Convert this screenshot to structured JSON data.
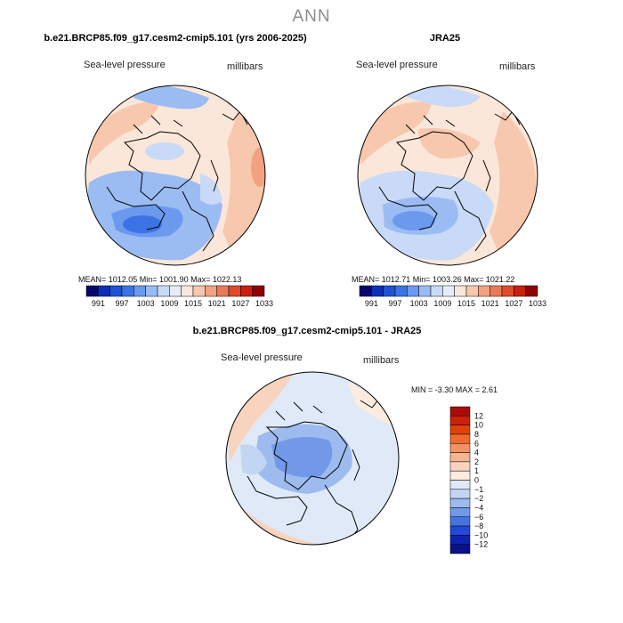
{
  "header": {
    "title": "ANN"
  },
  "panels": [
    {
      "title": "b.e21.BRCP85.f09_g17.cesm2-cmip5.101 (yrs 2006-2025)",
      "left_label": "Sea-level pressure",
      "right_label": "millibars",
      "stats": "MEAN= 1012.05   Min= 1001.90   Max= 1022.13"
    },
    {
      "title": "JRA25",
      "left_label": "Sea-level pressure",
      "right_label": "millibars",
      "stats": "MEAN= 1012.71   Min= 1003.26   Max= 1021.22"
    },
    {
      "title": "b.e21.BRCP85.f09_g17.cesm2-cmip5.101 - JRA25",
      "left_label": "Sea-level pressure",
      "right_label": "millibars",
      "stats": "MIN =   -3.30 MAX =    2.61"
    }
  ],
  "chart_data": [
    {
      "type": "heatmap",
      "title": "b.e21.BRCP85.f09_g17.cesm2-cmip5.101 (yrs 2006-2025)",
      "variable": "Sea-level pressure",
      "units": "millibars",
      "projection": "polar stereographic (north)",
      "stats": {
        "mean": 1012.05,
        "min": 1001.9,
        "max": 1022.13
      },
      "colorbar": {
        "orientation": "horizontal",
        "levels": [
          991,
          997,
          1003,
          1009,
          1015,
          1021,
          1027,
          1033
        ],
        "colors": [
          "#08056b",
          "#0c2fb7",
          "#1f52d6",
          "#3b73e6",
          "#6b99ee",
          "#9bbcf3",
          "#c8daf7",
          "#e4edf9",
          "#fbe7da",
          "#f7c8ad",
          "#f2a281",
          "#ea7a57",
          "#de4b2c",
          "#c91f11",
          "#8e0300"
        ]
      }
    },
    {
      "type": "heatmap",
      "title": "JRA25",
      "variable": "Sea-level pressure",
      "units": "millibars",
      "projection": "polar stereographic (north)",
      "stats": {
        "mean": 1012.71,
        "min": 1003.26,
        "max": 1021.22
      },
      "colorbar": {
        "orientation": "horizontal",
        "levels": [
          991,
          997,
          1003,
          1009,
          1015,
          1021,
          1027,
          1033
        ],
        "colors": [
          "#08056b",
          "#0c2fb7",
          "#1f52d6",
          "#3b73e6",
          "#6b99ee",
          "#9bbcf3",
          "#c8daf7",
          "#e4edf9",
          "#fbe7da",
          "#f7c8ad",
          "#f2a281",
          "#ea7a57",
          "#de4b2c",
          "#c91f11",
          "#8e0300"
        ]
      }
    },
    {
      "type": "heatmap",
      "title": "b.e21.BRCP85.f09_g17.cesm2-cmip5.101 - JRA25",
      "variable": "Sea-level pressure",
      "units": "millibars",
      "projection": "polar stereographic (north)",
      "stats": {
        "min": -3.3,
        "max": 2.61
      },
      "colorbar": {
        "orientation": "vertical",
        "levels": [
          12,
          10,
          8,
          6,
          4,
          2,
          1,
          0,
          -1,
          -2,
          -4,
          -6,
          -8,
          -10,
          -12
        ],
        "colors": [
          "#a90c0a",
          "#cd2107",
          "#e2410c",
          "#ee6a2e",
          "#f39262",
          "#f6b592",
          "#f8d3bd",
          "#fbecdf",
          "#dfe9f7",
          "#c2d6f3",
          "#9dbbee",
          "#7199e8",
          "#4673e2",
          "#2249d6",
          "#0e22b0",
          "#0a0f8a"
        ]
      }
    }
  ]
}
